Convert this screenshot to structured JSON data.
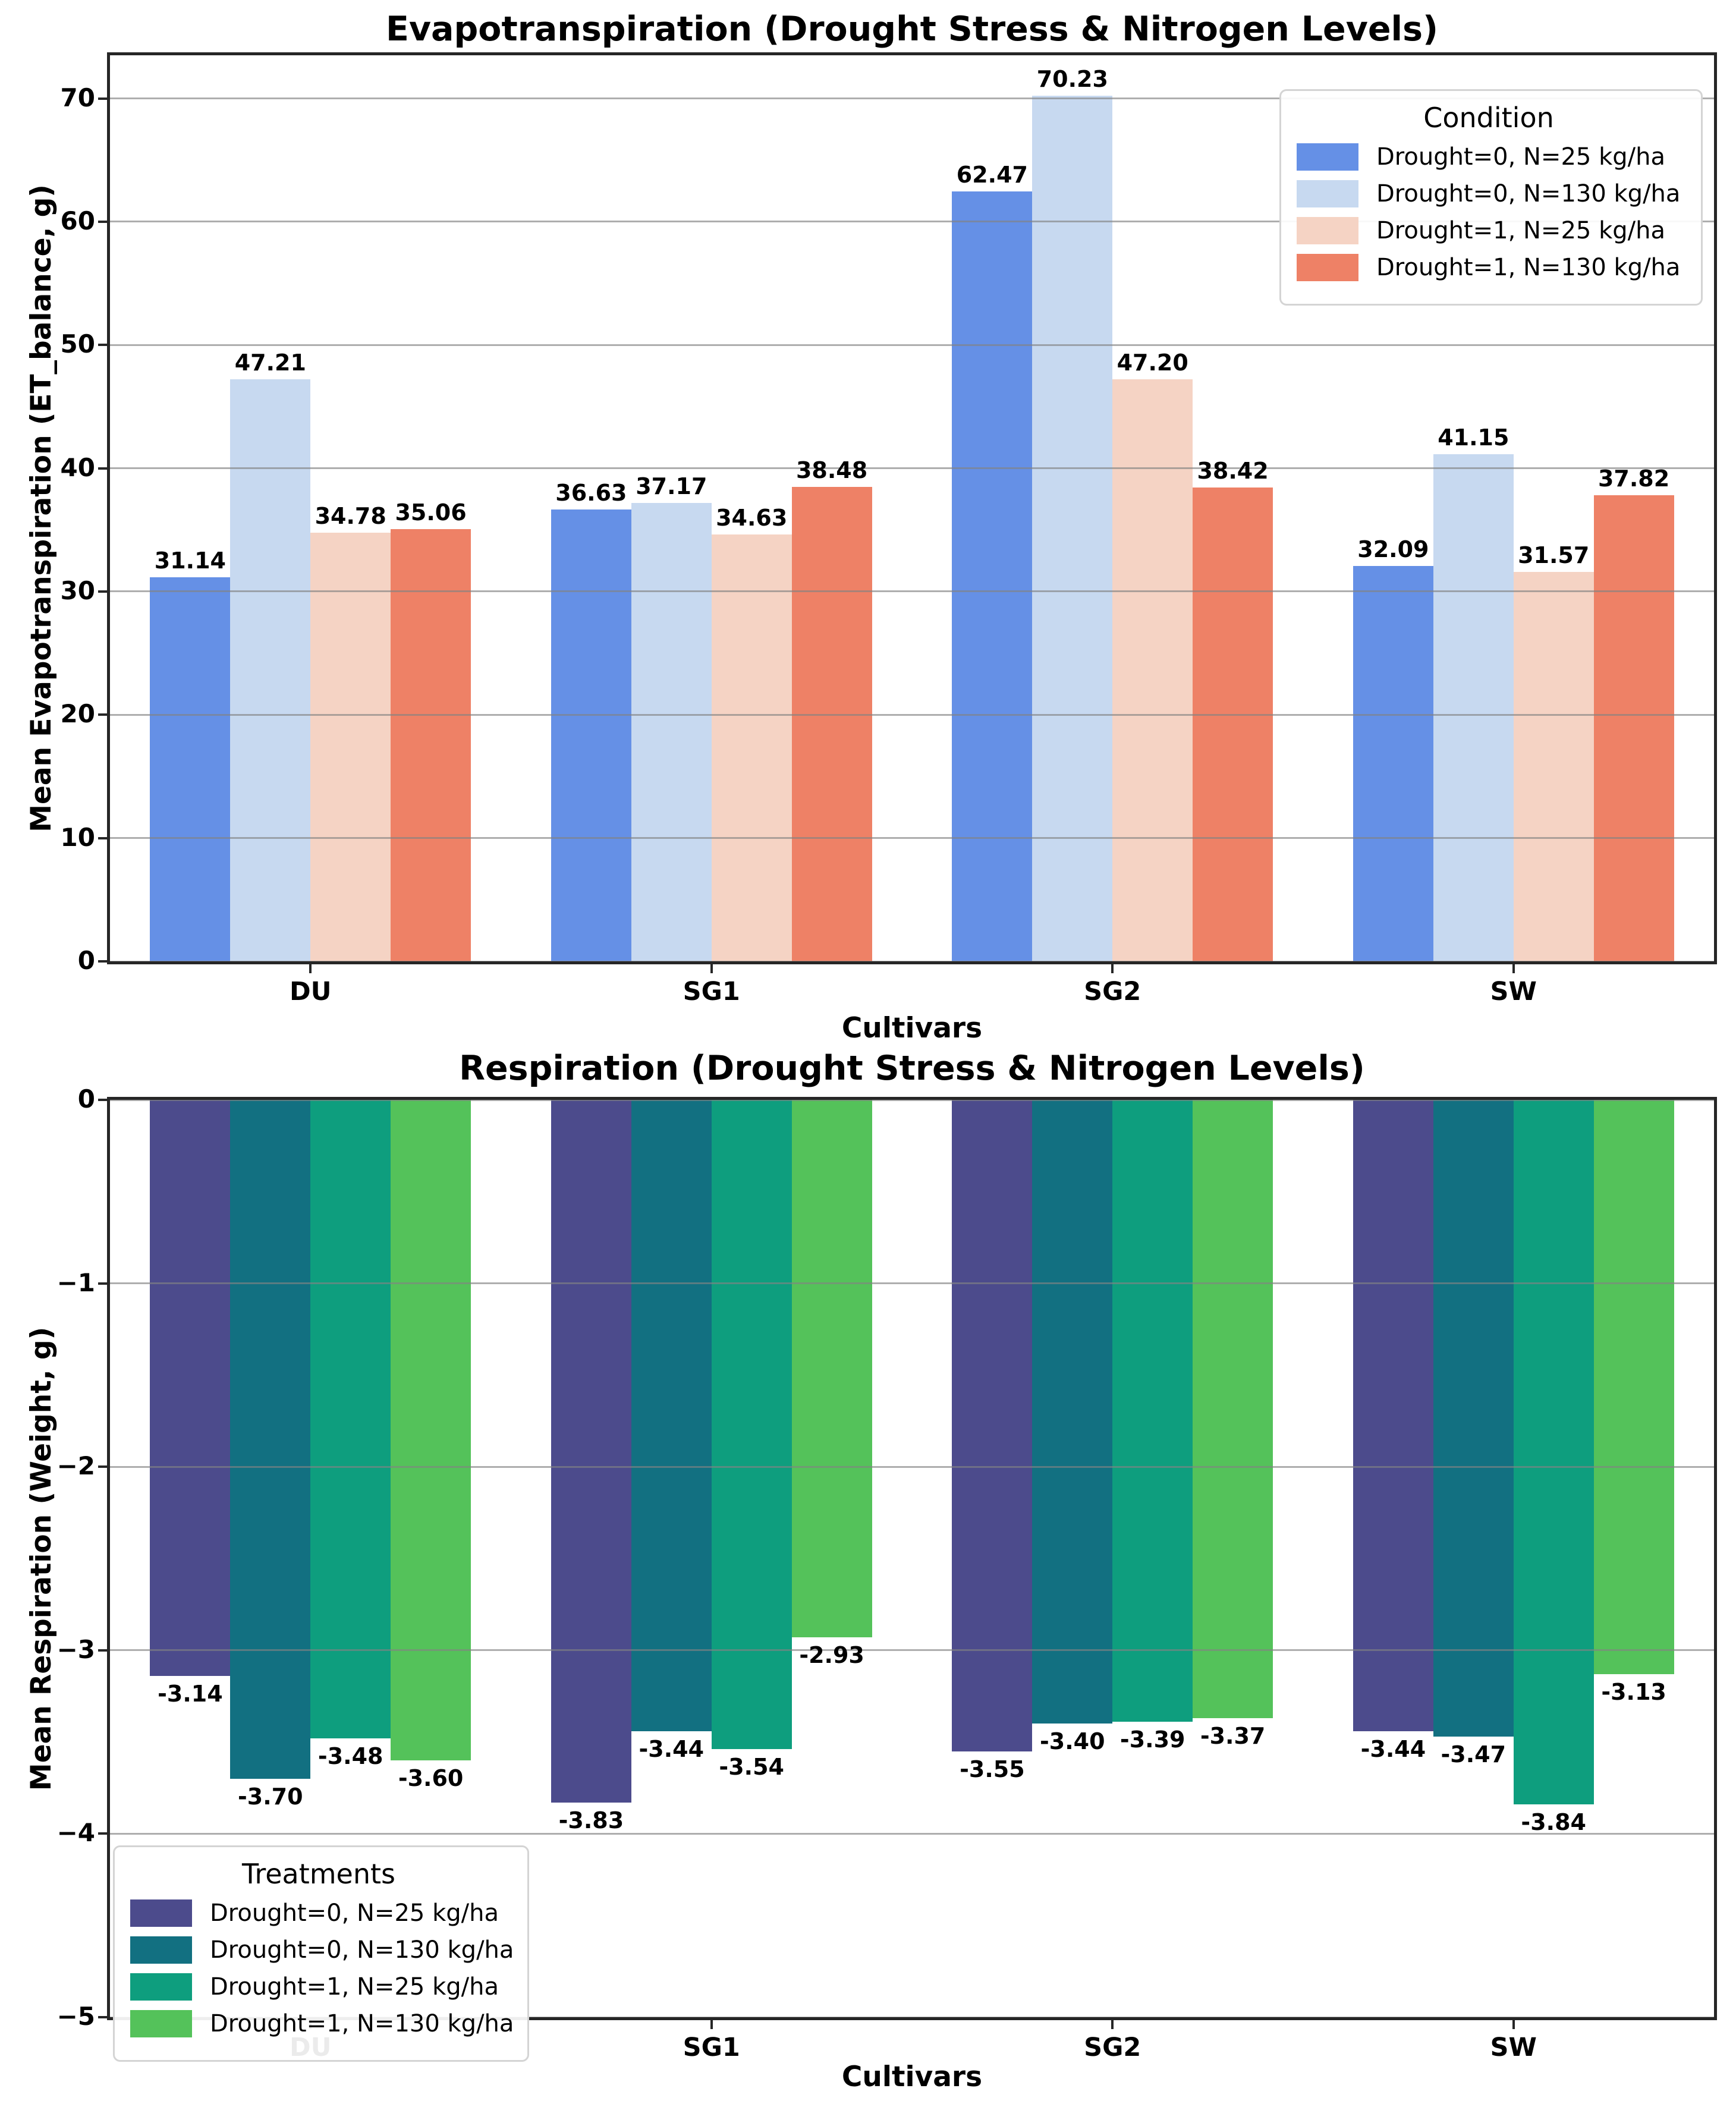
{
  "figure": {
    "background": "#ffffff"
  },
  "chart_data": [
    {
      "type": "bar",
      "title": "Evapotranspiration (Drought Stress & Nitrogen Levels)",
      "xlabel": "Cultivars",
      "ylabel": "Mean Evapotranspiration (ET_balance, g)",
      "categories": [
        "DU",
        "SG1",
        "SG2",
        "SW"
      ],
      "series": [
        {
          "name": "Drought=0, N=25 kg/ha",
          "color": "#6590e6",
          "values": [
            31.14,
            36.63,
            62.47,
            32.09
          ]
        },
        {
          "name": "Drought=0, N=130 kg/ha",
          "color": "#c7d9f0",
          "values": [
            47.21,
            37.17,
            70.23,
            41.15
          ]
        },
        {
          "name": "Drought=1, N=25 kg/ha",
          "color": "#f5d3c4",
          "values": [
            34.78,
            34.63,
            47.2,
            31.57
          ]
        },
        {
          "name": "Drought=1, N=130 kg/ha",
          "color": "#ee8166",
          "values": [
            35.06,
            38.48,
            38.42,
            37.82
          ]
        }
      ],
      "ylim": [
        0,
        73.5
      ],
      "yticks": [
        0,
        10,
        20,
        30,
        40,
        50,
        60,
        70
      ],
      "ytick_labels": [
        "0",
        "10",
        "20",
        "30",
        "40",
        "50",
        "60",
        "70"
      ],
      "grid": true,
      "legend": {
        "title": "Condition",
        "position": "top-right"
      }
    },
    {
      "type": "bar",
      "title": "Respiration (Drought Stress & Nitrogen Levels)",
      "xlabel": "Cultivars",
      "ylabel": "Mean Respiration (Weight, g)",
      "categories": [
        "DU",
        "SG1",
        "SG2",
        "SW"
      ],
      "series": [
        {
          "name": "Drought=0, N=25 kg/ha",
          "color": "#4c4b8c",
          "values": [
            -3.14,
            -3.83,
            -3.55,
            -3.44
          ]
        },
        {
          "name": "Drought=0, N=130 kg/ha",
          "color": "#127081",
          "values": [
            -3.7,
            -3.44,
            -3.4,
            -3.47
          ]
        },
        {
          "name": "Drought=1, N=25 kg/ha",
          "color": "#0e9e7e",
          "values": [
            -3.48,
            -3.54,
            -3.39,
            -3.84
          ]
        },
        {
          "name": "Drought=1, N=130 kg/ha",
          "color": "#54c25a",
          "values": [
            -3.6,
            -2.93,
            -3.37,
            -3.13
          ]
        }
      ],
      "ylim": [
        -5,
        0
      ],
      "yticks": [
        0,
        -1,
        -2,
        -3,
        -4,
        -5
      ],
      "ytick_labels": [
        "0",
        "−1",
        "−2",
        "−3",
        "−4",
        "−5"
      ],
      "grid": true,
      "legend": {
        "title": "Treatments",
        "position": "bottom-left"
      }
    }
  ]
}
